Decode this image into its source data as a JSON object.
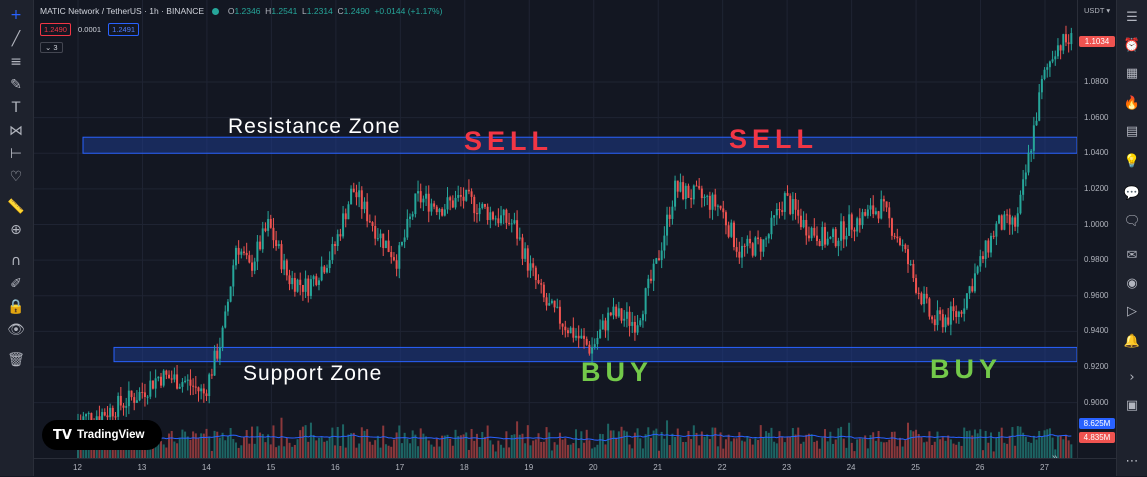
{
  "header": {
    "symbol": "MATIC Network / TetherUS · 1h · BINANCE",
    "o_label": "O",
    "o_value": "1.2346",
    "h_label": "H",
    "h_value": "1.2541",
    "l_label": "L",
    "l_value": "1.2314",
    "c_label": "C",
    "c_value": "1.2490",
    "change": "+0.0144 (+1.17%)",
    "sell_price": "1.2490",
    "spread": "0.0001",
    "buy_price": "1.2491",
    "indicator_count": "3"
  },
  "price_scale": {
    "currency": "USDT",
    "ticks": [
      "1.0800",
      "1.0600",
      "1.0400",
      "1.0200",
      "1.0000",
      "0.9800",
      "0.9600",
      "0.9400",
      "0.9200",
      "0.9000"
    ],
    "last_price_badge": "1.1034",
    "volume_badge_1": "8.625M",
    "volume_badge_2": "4.835M"
  },
  "time_axis": {
    "ticks": [
      "12",
      "13",
      "14",
      "15",
      "16",
      "17",
      "18",
      "19",
      "20",
      "21",
      "22",
      "23",
      "24",
      "25",
      "26",
      "27"
    ]
  },
  "annotations": {
    "resistance_label": "Resistance  Zone",
    "support_label": "Support  Zone",
    "sell_1": "SELL",
    "sell_2": "SELL",
    "buy_1": "BUY",
    "buy_2": "BUY"
  },
  "watermark": {
    "logo": "TV",
    "text": "TradingView"
  },
  "colors": {
    "up": "#26a69a",
    "down": "#ef5350",
    "zone_fill": "#1e3a8a",
    "zone_line": "#2962ff",
    "sell": "#f23645",
    "buy": "#73c94a",
    "background": "#131722"
  },
  "left_toolbar_icons": [
    "crosshair-icon",
    "trend-line-icon",
    "fib-icon",
    "brush-icon",
    "text-icon",
    "pattern-icon",
    "measure-icon",
    "heart-icon",
    "ruler-icon",
    "zoom-icon",
    "magnet-icon",
    "lock-drawing-icon",
    "lock-icon",
    "eye-icon",
    "trash-icon"
  ],
  "right_toolbar_icons": [
    "watchlist-icon",
    "alerts-icon",
    "data-window-icon",
    "news-icon",
    "hotlist-icon",
    "calendar-icon",
    "ideas-icon",
    "chat-icon",
    "chats-icon",
    "messages-icon",
    "stream-icon",
    "play-icon",
    "notification-icon",
    "layers-icon",
    "more-icon"
  ],
  "chart_data": {
    "type": "candlestick",
    "title": "MATIC Network / TetherUS · 1h · BINANCE",
    "x_axis": "date (day of month)",
    "ylim": [
      0.9,
      1.12
    ],
    "grid": true,
    "zones": [
      {
        "name": "Resistance  Zone",
        "from": 1.04,
        "to": 1.049
      },
      {
        "name": "Support  Zone",
        "from": 0.923,
        "to": 0.931
      }
    ],
    "close_path": [
      {
        "day": 12.0,
        "close": 0.89
      },
      {
        "day": 12.5,
        "close": 0.895
      },
      {
        "day": 13.0,
        "close": 0.905
      },
      {
        "day": 13.3,
        "close": 0.915
      },
      {
        "day": 13.7,
        "close": 0.912
      },
      {
        "day": 14.0,
        "close": 0.905
      },
      {
        "day": 14.3,
        "close": 0.94
      },
      {
        "day": 14.5,
        "close": 0.99
      },
      {
        "day": 14.7,
        "close": 0.975
      },
      {
        "day": 15.0,
        "close": 1.0
      },
      {
        "day": 15.3,
        "close": 0.97
      },
      {
        "day": 15.6,
        "close": 0.965
      },
      {
        "day": 16.0,
        "close": 0.985
      },
      {
        "day": 16.3,
        "close": 1.02
      },
      {
        "day": 16.7,
        "close": 0.995
      },
      {
        "day": 17.0,
        "close": 0.98
      },
      {
        "day": 17.3,
        "close": 1.015
      },
      {
        "day": 17.7,
        "close": 1.01
      },
      {
        "day": 18.0,
        "close": 1.015
      },
      {
        "day": 18.5,
        "close": 1.005
      },
      {
        "day": 18.8,
        "close": 1.0
      },
      {
        "day": 19.0,
        "close": 0.98
      },
      {
        "day": 19.3,
        "close": 0.955
      },
      {
        "day": 19.7,
        "close": 0.94
      },
      {
        "day": 20.0,
        "close": 0.93
      },
      {
        "day": 20.3,
        "close": 0.95
      },
      {
        "day": 20.7,
        "close": 0.945
      },
      {
        "day": 21.0,
        "close": 0.975
      },
      {
        "day": 21.3,
        "close": 1.02
      },
      {
        "day": 21.7,
        "close": 1.015
      },
      {
        "day": 22.0,
        "close": 1.01
      },
      {
        "day": 22.3,
        "close": 0.985
      },
      {
        "day": 22.7,
        "close": 0.99
      },
      {
        "day": 23.0,
        "close": 1.015
      },
      {
        "day": 23.3,
        "close": 1.0
      },
      {
        "day": 23.7,
        "close": 0.99
      },
      {
        "day": 24.0,
        "close": 1.0
      },
      {
        "day": 24.5,
        "close": 1.01
      },
      {
        "day": 24.8,
        "close": 0.99
      },
      {
        "day": 25.0,
        "close": 0.97
      },
      {
        "day": 25.3,
        "close": 0.945
      },
      {
        "day": 25.7,
        "close": 0.95
      },
      {
        "day": 26.0,
        "close": 0.975
      },
      {
        "day": 26.3,
        "close": 1.0
      },
      {
        "day": 26.6,
        "close": 1.0
      },
      {
        "day": 26.8,
        "close": 1.04
      },
      {
        "day": 27.0,
        "close": 1.08
      },
      {
        "day": 27.2,
        "close": 1.1
      },
      {
        "day": 27.4,
        "close": 1.103
      }
    ]
  }
}
